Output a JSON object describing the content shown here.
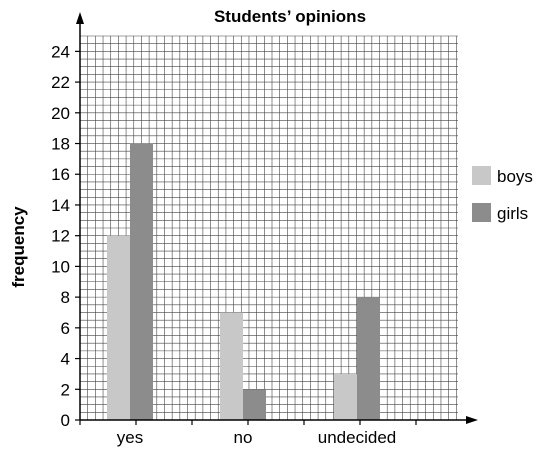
{
  "chart_data": {
    "type": "bar",
    "title": "Students’ opinions",
    "xlabel": "",
    "ylabel": "frequency",
    "categories": [
      "yes",
      "no",
      "undecided"
    ],
    "series": [
      {
        "name": "boys",
        "values": [
          12,
          7,
          3
        ],
        "color": "#c8c8c8"
      },
      {
        "name": "girls",
        "values": [
          18,
          2,
          8
        ],
        "color": "#8c8c8c"
      }
    ],
    "ylim": [
      0,
      25
    ],
    "yticks": [
      0,
      2,
      4,
      6,
      8,
      10,
      12,
      14,
      16,
      18,
      20,
      22,
      24
    ],
    "grid": true,
    "legend": "right"
  }
}
